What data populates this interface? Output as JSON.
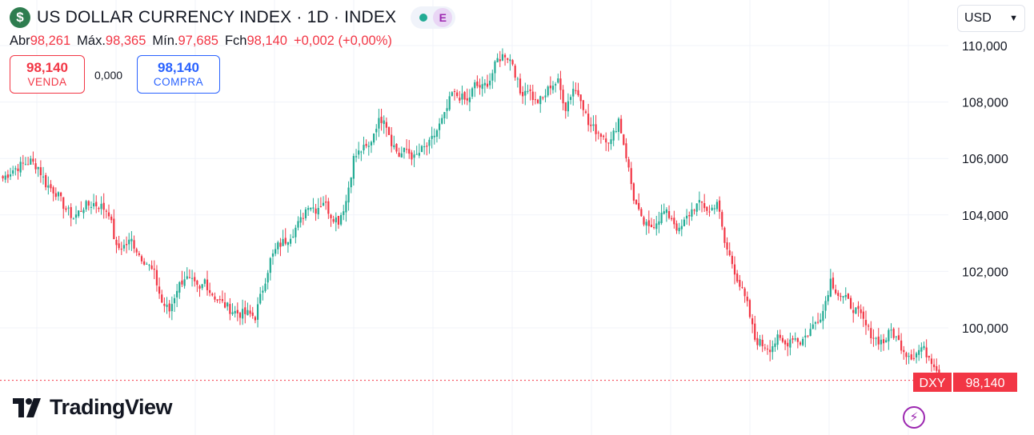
{
  "header": {
    "icon": "dollar-icon",
    "title": "US DOLLAR CURRENCY INDEX · 1D · INDEX",
    "status_dot_color": "#22ab94",
    "e_badge": "E"
  },
  "ohlc": {
    "open_label": "Abr",
    "open": "98,261",
    "high_label": "Máx.",
    "high": "98,365",
    "low_label": "Mín.",
    "low": "97,685",
    "close_label": "Fch",
    "close": "98,140",
    "change": "+0,002 (+0,00%)"
  },
  "trade": {
    "sell_price": "98,140",
    "sell_label": "VENDA",
    "spread": "0,000",
    "buy_price": "98,140",
    "buy_label": "COMPRA"
  },
  "currency_select": {
    "value": "USD"
  },
  "branding": {
    "logo_text": "TradingView"
  },
  "colors": {
    "up": "#22ab94",
    "down": "#f23645",
    "accent": "#2962ff"
  },
  "chart_data": {
    "type": "candlestick",
    "symbol": "DXY",
    "last_price": 98.14,
    "last_price_label": "98,140",
    "yaxis": {
      "ticks": [
        "110,000",
        "108,000",
        "106,000",
        "104,000",
        "102,000",
        "100,000"
      ],
      "tick_values": [
        110,
        108,
        106,
        104,
        102,
        100
      ],
      "range": [
        97.2,
        110.5
      ]
    },
    "grid": true,
    "close_path_anchors": [
      [
        0,
        105.3
      ],
      [
        4,
        105.6
      ],
      [
        8,
        105.8
      ],
      [
        11,
        105.9
      ],
      [
        14,
        105.7
      ],
      [
        17,
        105.1
      ],
      [
        21,
        104.8
      ],
      [
        25,
        104.2
      ],
      [
        28,
        103.9
      ],
      [
        32,
        104.3
      ],
      [
        36,
        104.4
      ],
      [
        39,
        104.3
      ],
      [
        42,
        104.1
      ],
      [
        45,
        102.8
      ],
      [
        48,
        102.9
      ],
      [
        51,
        103.1
      ],
      [
        54,
        102.6
      ],
      [
        57,
        102.3
      ],
      [
        60,
        101.9
      ],
      [
        63,
        100.9
      ],
      [
        66,
        100.6
      ],
      [
        69,
        101.4
      ],
      [
        72,
        101.8
      ],
      [
        75,
        101.6
      ],
      [
        78,
        101.3
      ],
      [
        80,
        101.7
      ],
      [
        82,
        101.3
      ],
      [
        85,
        101.0
      ],
      [
        88,
        100.8
      ],
      [
        91,
        100.6
      ],
      [
        94,
        100.5
      ],
      [
        97,
        100.5
      ],
      [
        100,
        100.4
      ],
      [
        103,
        101.4
      ],
      [
        106,
        102.4
      ],
      [
        109,
        102.9
      ],
      [
        112,
        103.1
      ],
      [
        115,
        103.4
      ],
      [
        118,
        103.8
      ],
      [
        121,
        104.4
      ],
      [
        124,
        104.2
      ],
      [
        127,
        104.5
      ],
      [
        130,
        104.0
      ],
      [
        133,
        103.8
      ],
      [
        136,
        104.5
      ],
      [
        139,
        106.0
      ],
      [
        142,
        106.3
      ],
      [
        145,
        106.4
      ],
      [
        148,
        107.2
      ],
      [
        151,
        107.5
      ],
      [
        154,
        106.6
      ],
      [
        157,
        106.1
      ],
      [
        160,
        106.3
      ],
      [
        163,
        106.0
      ],
      [
        166,
        106.3
      ],
      [
        169,
        106.5
      ],
      [
        172,
        107.0
      ],
      [
        175,
        107.5
      ],
      [
        178,
        108.3
      ],
      [
        181,
        108.2
      ],
      [
        184,
        108.0
      ],
      [
        187,
        108.6
      ],
      [
        190,
        108.5
      ],
      [
        193,
        108.8
      ],
      [
        196,
        109.5
      ],
      [
        199,
        109.7
      ],
      [
        202,
        109.4
      ],
      [
        205,
        108.3
      ],
      [
        208,
        108.5
      ],
      [
        211,
        108.0
      ],
      [
        214,
        108.1
      ],
      [
        217,
        108.6
      ],
      [
        220,
        108.7
      ],
      [
        223,
        107.8
      ],
      [
        226,
        108.5
      ],
      [
        229,
        108.2
      ],
      [
        232,
        107.2
      ],
      [
        235,
        107.0
      ],
      [
        238,
        106.8
      ],
      [
        241,
        106.6
      ],
      [
        244,
        107.4
      ],
      [
        247,
        106.1
      ],
      [
        250,
        104.6
      ],
      [
        253,
        103.8
      ],
      [
        256,
        103.5
      ],
      [
        259,
        103.8
      ],
      [
        262,
        104.1
      ],
      [
        265,
        103.9
      ],
      [
        268,
        103.4
      ],
      [
        271,
        103.9
      ],
      [
        274,
        104.3
      ],
      [
        277,
        104.4
      ],
      [
        280,
        104.1
      ],
      [
        283,
        104.5
      ],
      [
        286,
        103.0
      ],
      [
        289,
        102.3
      ],
      [
        292,
        101.5
      ],
      [
        295,
        100.8
      ],
      [
        298,
        99.6
      ],
      [
        301,
        99.4
      ],
      [
        304,
        99.3
      ],
      [
        307,
        99.6
      ],
      [
        310,
        99.4
      ],
      [
        313,
        99.7
      ],
      [
        316,
        99.5
      ],
      [
        319,
        99.8
      ],
      [
        322,
        100.2
      ],
      [
        325,
        100.6
      ],
      [
        328,
        101.7
      ],
      [
        331,
        101.2
      ],
      [
        334,
        101.0
      ],
      [
        337,
        100.7
      ],
      [
        340,
        100.4
      ],
      [
        343,
        99.9
      ],
      [
        346,
        99.6
      ],
      [
        349,
        99.5
      ],
      [
        352,
        99.9
      ],
      [
        355,
        99.5
      ],
      [
        358,
        99.1
      ],
      [
        361,
        99.0
      ],
      [
        364,
        99.3
      ],
      [
        367,
        99.0
      ],
      [
        370,
        98.6
      ],
      [
        371,
        98.14
      ]
    ]
  }
}
